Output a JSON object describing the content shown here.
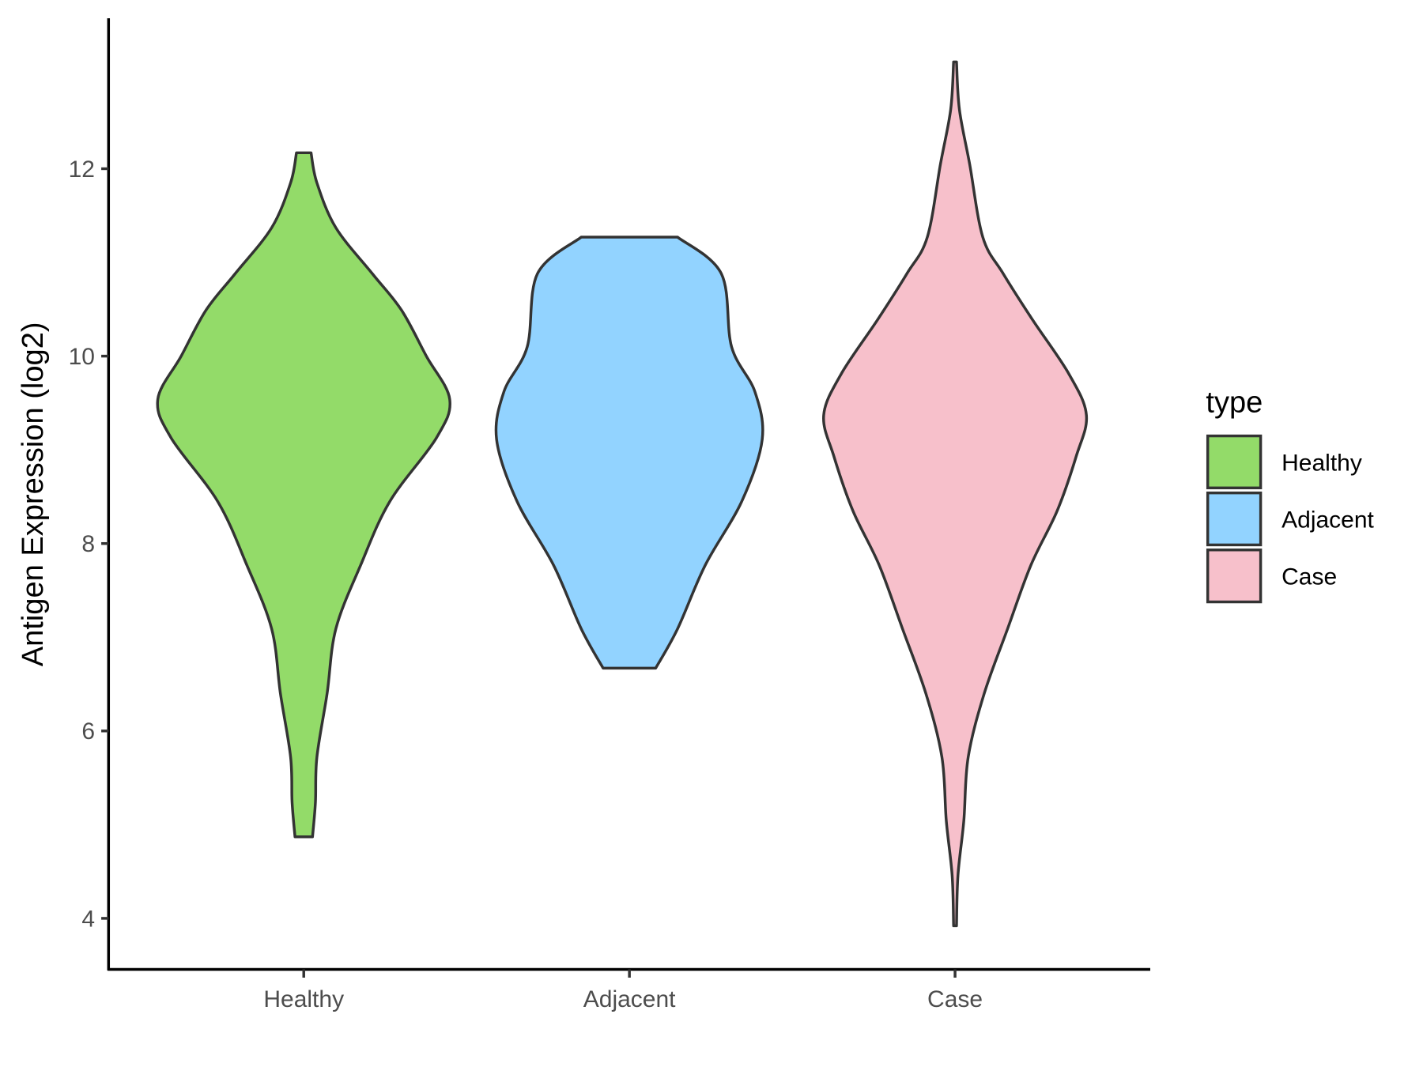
{
  "chart_data": {
    "type": "violin",
    "title": "",
    "xlabel": "",
    "ylabel": "Antigen Expression (log2)",
    "ylim": [
      3.45,
      13.6
    ],
    "yticks": [
      4,
      6,
      8,
      10,
      12
    ],
    "grid": false,
    "categories": [
      "Healthy",
      "Adjacent",
      "Case"
    ],
    "legend": {
      "title": "type",
      "position": "right",
      "entries": [
        "Healthy",
        "Adjacent",
        "Case"
      ]
    },
    "series": [
      {
        "name": "Healthy",
        "color": "#93DB69",
        "y": [
          12.17,
          11.85,
          11.37,
          10.88,
          10.49,
          10.0,
          9.54,
          9.13,
          8.45,
          7.77,
          7.09,
          6.4,
          5.72,
          5.24,
          4.87
        ],
        "density": [
          0.05,
          0.09,
          0.22,
          0.47,
          0.67,
          0.84,
          1.0,
          0.91,
          0.59,
          0.39,
          0.22,
          0.16,
          0.09,
          0.08,
          0.06
        ]
      },
      {
        "name": "Adjacent",
        "color": "#92D3FF",
        "y": [
          11.27,
          10.88,
          10.1,
          9.62,
          9.11,
          8.45,
          7.77,
          7.09,
          6.67
        ],
        "density": [
          0.33,
          0.63,
          0.7,
          0.86,
          0.91,
          0.77,
          0.52,
          0.33,
          0.18
        ]
      },
      {
        "name": "Case",
        "color": "#F7C0CB",
        "y": [
          13.14,
          12.63,
          12.05,
          11.27,
          10.88,
          10.39,
          9.81,
          9.37,
          8.93,
          8.35,
          7.77,
          7.09,
          6.4,
          5.72,
          5.04,
          4.46,
          3.92
        ],
        "density": [
          0.01,
          0.03,
          0.1,
          0.19,
          0.33,
          0.53,
          0.78,
          0.9,
          0.83,
          0.7,
          0.52,
          0.36,
          0.2,
          0.09,
          0.06,
          0.02,
          0.01
        ]
      }
    ]
  }
}
